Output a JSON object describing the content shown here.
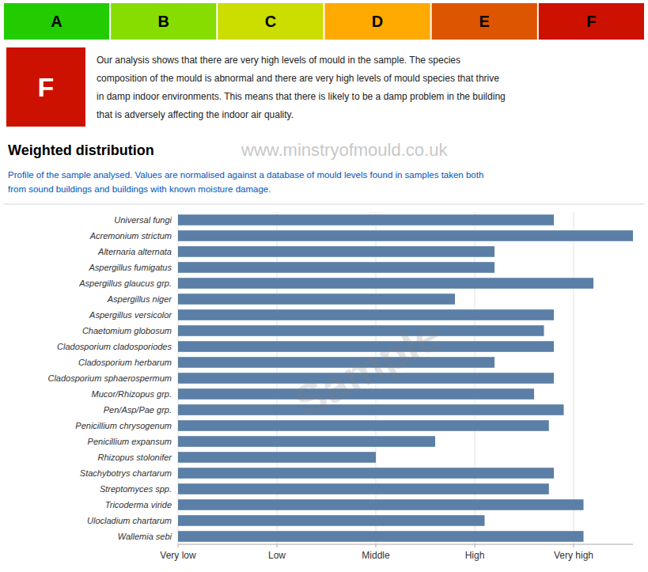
{
  "chart_data": {
    "type": "bar",
    "orientation": "horizontal",
    "title": "Weighted distribution",
    "subtitle": [
      "Profile of the sample analysed. Values are normalised against a database of mould levels found in samples taken both",
      "from sound buildings and buildings with known moisture damage."
    ],
    "annotations": [
      {
        "text": "A",
        "color": "#22cc00"
      },
      {
        "text": "B",
        "color": "#88dd00"
      },
      {
        "text": "C",
        "color": "#ccdd00"
      },
      {
        "text": "D",
        "color": "#ffaa00"
      },
      {
        "text": "E",
        "color": "#dd5500"
      },
      {
        "text": "F",
        "color": "#cc1100"
      },
      {
        "text": "F",
        "color": "#cc1100"
      },
      {
        "text": "Our analysis shows that there are very high levels of mould in the sample. The species"
      },
      {
        "text": "composition of the mould is abnormal and there are very high levels of mould species that thrive"
      },
      {
        "text": "in damp indoor environments. This means that there is likely to be a damp problem in the building"
      },
      {
        "text": "that is adversely affecting the indoor air quality."
      },
      {
        "text": "www.minstryofmould.co.uk"
      },
      {
        "text": "Sample"
      }
    ],
    "categories": [
      "Universal fungi",
      "Acremonium strictum",
      "Alternaria alternata",
      "Aspergillus fumigatus",
      "Aspergillus glaucus grp.",
      "Aspergillus niger",
      "Aspergillus versicolor",
      "Chaetomium globosum",
      "Cladosporium cladosporiodes",
      "Cladosporium herbarum",
      "Cladosporium sphaerospermum",
      "Mucor/Rhizopus grp.",
      "Pen/Asp/Pae grp.",
      "Penicillium chrysogenum",
      "Penicillium expansum",
      "Rhizopus stolonifer",
      "Stachybotrys chartarum",
      "Streptomyces spp.",
      "Tricoderma viride",
      "Ulocladium chartarum",
      "Wallemia sebi"
    ],
    "values": [
      4.8,
      5.6,
      4.2,
      4.2,
      5.2,
      3.8,
      4.8,
      4.7,
      4.8,
      4.2,
      4.8,
      4.6,
      4.9,
      4.75,
      3.6,
      3.0,
      4.8,
      4.75,
      5.1,
      4.1,
      5.1
    ],
    "color": "#5b7fa6",
    "xlim": [
      1,
      5.6
    ],
    "xticks": [
      {
        "value": 1,
        "label": "Very low"
      },
      {
        "value": 2,
        "label": "Low"
      },
      {
        "value": 3,
        "label": "Middle"
      },
      {
        "value": 4,
        "label": "High"
      },
      {
        "value": 5,
        "label": "Very high"
      }
    ],
    "grid": true
  }
}
